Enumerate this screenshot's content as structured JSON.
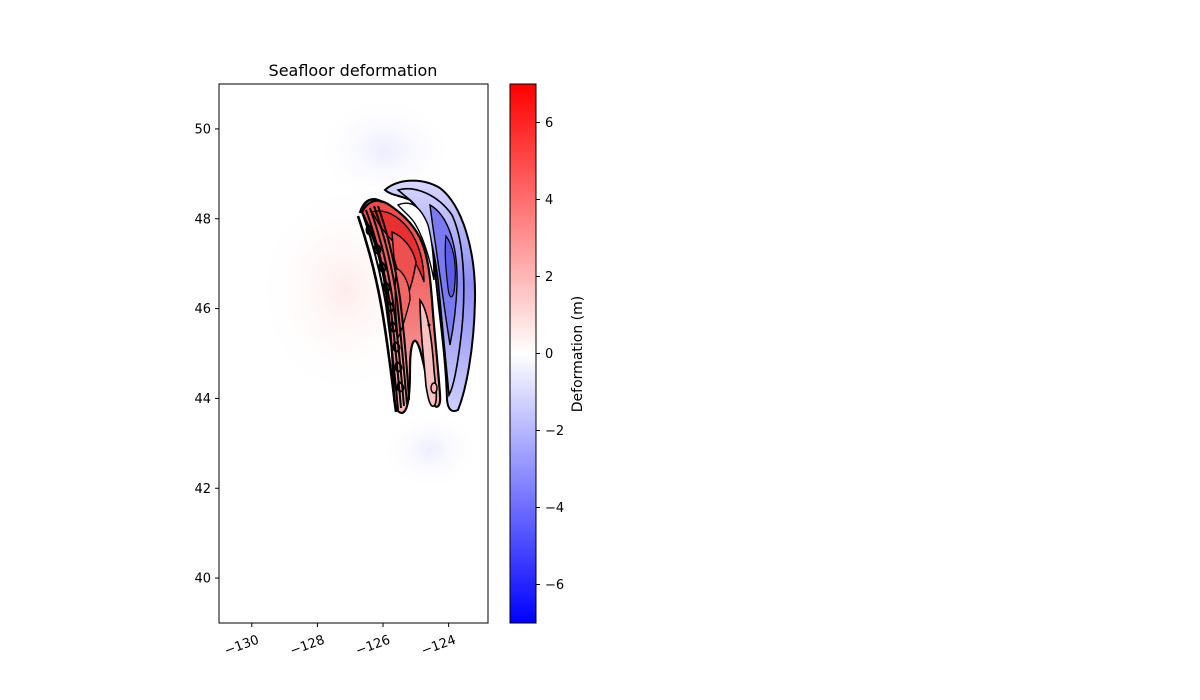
{
  "chart_data": {
    "type": "heatmap",
    "title": "Seafloor deformation",
    "xlabel": "",
    "ylabel": "",
    "xlim": [
      -131,
      -122.8
    ],
    "ylim": [
      39,
      51
    ],
    "xticks": [
      -130,
      -128,
      -126,
      -124
    ],
    "xtick_labels": [
      "−130",
      "−128",
      "−126",
      "−124"
    ],
    "yticks": [
      40,
      42,
      44,
      46,
      48,
      50
    ],
    "ytick_labels": [
      "40",
      "42",
      "44",
      "46",
      "48",
      "50"
    ],
    "grid": false,
    "colormap": "bwr",
    "colors": {
      "low": "#0000ff",
      "mid": "#ffffff",
      "high": "#ff0000",
      "contour": "#000000"
    },
    "colorbar": {
      "label": "Deformation (m)",
      "range": [
        -7,
        7
      ],
      "ticks": [
        -6,
        -4,
        -2,
        0,
        2,
        4,
        6
      ],
      "tick_labels": [
        "−6",
        "−4",
        "−2",
        "0",
        "2",
        "4",
        "6"
      ]
    },
    "features": {
      "uplift_zone": {
        "description_values": "positive deformation band along -125.5 to -124.3 lon, lat 43.7 to 48.4",
        "max_m": 6.5,
        "lon_range": [
          -126.3,
          -124.2
        ],
        "lat_range": [
          43.7,
          48.4
        ]
      },
      "subsidence_zone": {
        "min_m": -4.5,
        "lon_range": [
          -124.4,
          -123.0
        ],
        "lat_range": [
          43.7,
          48.8
        ]
      }
    }
  }
}
